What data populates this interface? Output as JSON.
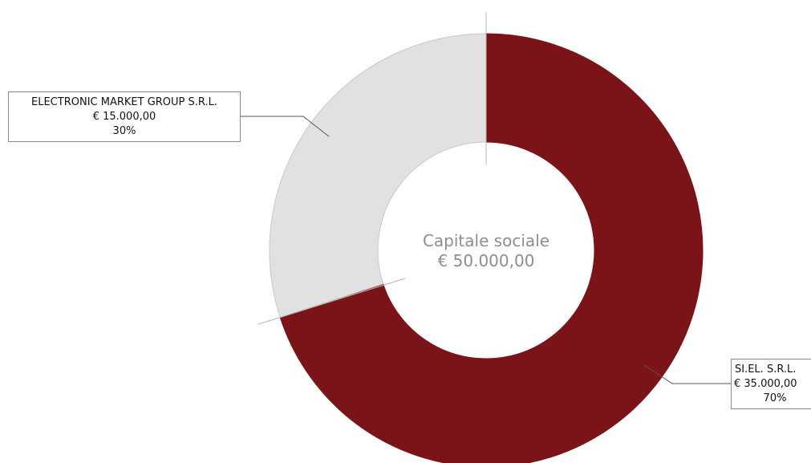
{
  "chart_data": {
    "type": "pie",
    "style": "donut",
    "title": "",
    "center_label": {
      "line1": "Capitale sociale",
      "line2": "€ 50.000,00"
    },
    "total": 50000,
    "slices": [
      {
        "name": "SI.EL. S.R.L.",
        "amount_label": "€ 35.000,00",
        "value": 35000,
        "percent_label": "70%",
        "color": "#7b1418"
      },
      {
        "name": "ELECTRONIC MARKET GROUP S.R.L.",
        "amount_label": "€ 15.000,00",
        "value": 15000,
        "percent_label": "30%",
        "color": "#e1e1e1"
      }
    ]
  }
}
